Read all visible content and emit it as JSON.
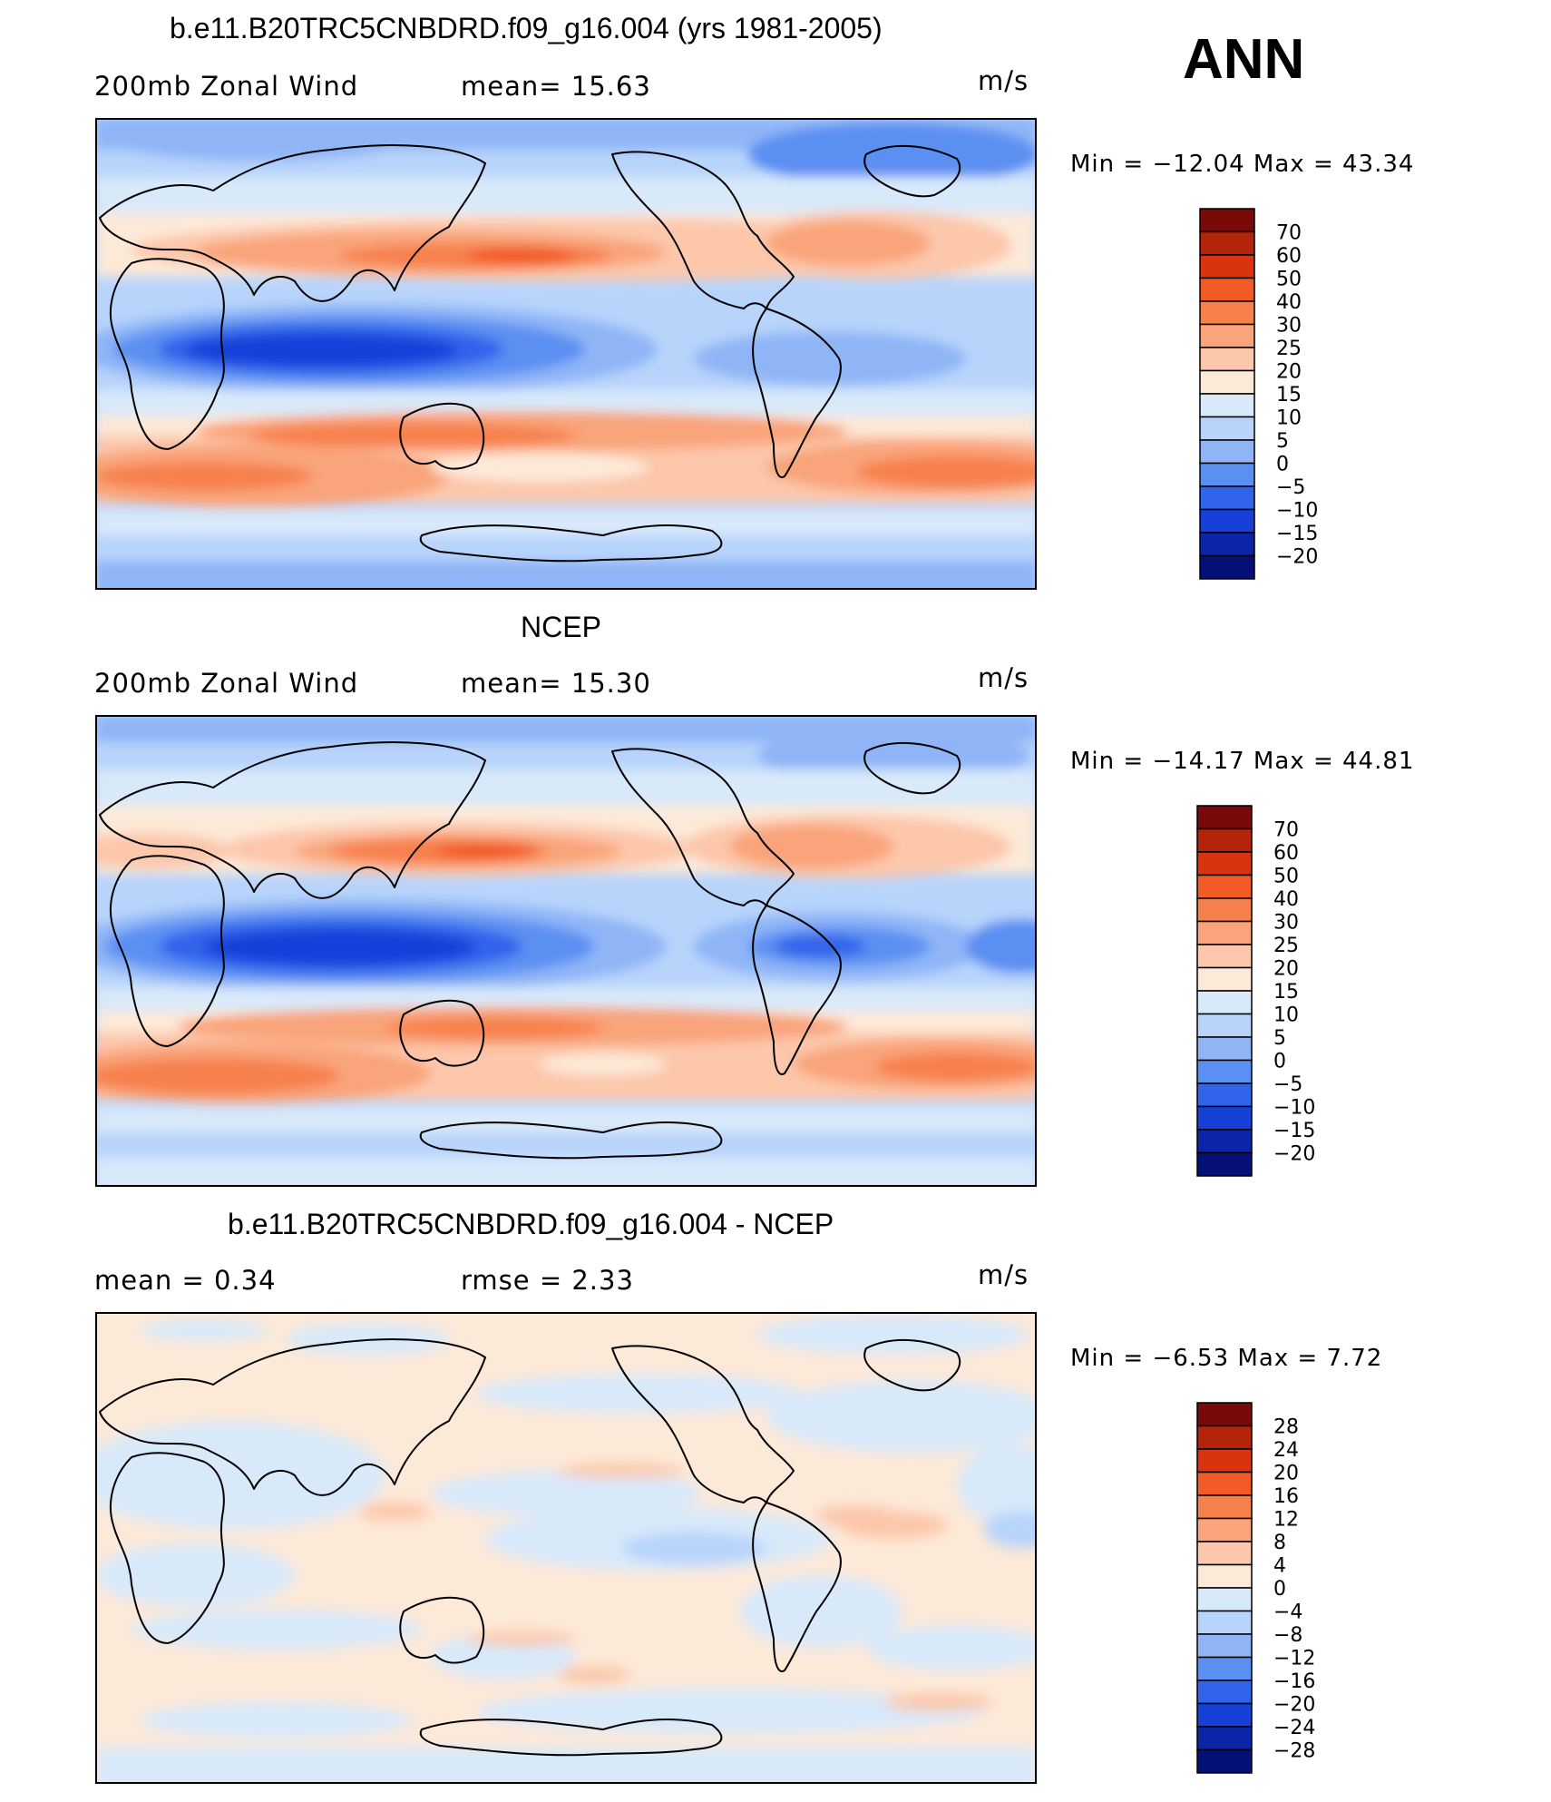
{
  "header": {
    "season": "ANN"
  },
  "panels": [
    {
      "title": "b.e11.B20TRC5CNBDRD.f09_g16.004 (yrs 1981-2005)",
      "left_label": "200mb  Zonal  Wind",
      "middle_label": "mean=   15.63",
      "units": "m/s",
      "minmax": "Min  =  −12.04  Max  =    43.34",
      "colorbar_labels": [
        "70",
        "60",
        "50",
        "40",
        "30",
        "25",
        "20",
        "15",
        "10",
        "5",
        "0",
        "−5",
        "−10",
        "−15",
        "−20"
      ],
      "colorbar_colors": [
        "#7a0a0a",
        "#b3240b",
        "#d9330f",
        "#f25b25",
        "#f7814d",
        "#f9a47a",
        "#fcc7ab",
        "#fde9d8",
        "#d8e9fa",
        "#b8d4fb",
        "#8fb5f7",
        "#5b8ff2",
        "#3163eb",
        "#1740d9",
        "#0a25a8",
        "#050f78"
      ]
    },
    {
      "title": "NCEP",
      "left_label": "200mb  Zonal  Wind",
      "middle_label": "mean=   15.30",
      "units": "m/s",
      "minmax": "Min  =  −14.17  Max  =    44.81",
      "colorbar_labels": [
        "70",
        "60",
        "50",
        "40",
        "30",
        "25",
        "20",
        "15",
        "10",
        "5",
        "0",
        "−5",
        "−10",
        "−15",
        "−20"
      ],
      "colorbar_colors": [
        "#7a0a0a",
        "#b3240b",
        "#d9330f",
        "#f25b25",
        "#f7814d",
        "#f9a47a",
        "#fcc7ab",
        "#fde9d8",
        "#d8e9fa",
        "#b8d4fb",
        "#8fb5f7",
        "#5b8ff2",
        "#3163eb",
        "#1740d9",
        "#0a25a8",
        "#050f78"
      ]
    },
    {
      "title": "b.e11.B20TRC5CNBDRD.f09_g16.004 - NCEP",
      "left_label": "mean  =     0.34",
      "middle_label": "rmse  =     2.33",
      "units": "m/s",
      "minmax": "Min  =    −6.53  Max  =      7.72",
      "colorbar_labels": [
        "28",
        "24",
        "20",
        "16",
        "12",
        "8",
        "4",
        "0",
        "−4",
        "−8",
        "−12",
        "−16",
        "−20",
        "−24",
        "−28"
      ],
      "colorbar_colors": [
        "#7a0a0a",
        "#b3240b",
        "#d9330f",
        "#f25b25",
        "#f7814d",
        "#f9a47a",
        "#fcc7ab",
        "#fde9d8",
        "#d8e9fa",
        "#b8d4fb",
        "#8fb5f7",
        "#5b8ff2",
        "#3163eb",
        "#1740d9",
        "#0a25a8",
        "#050f78"
      ]
    }
  ]
}
